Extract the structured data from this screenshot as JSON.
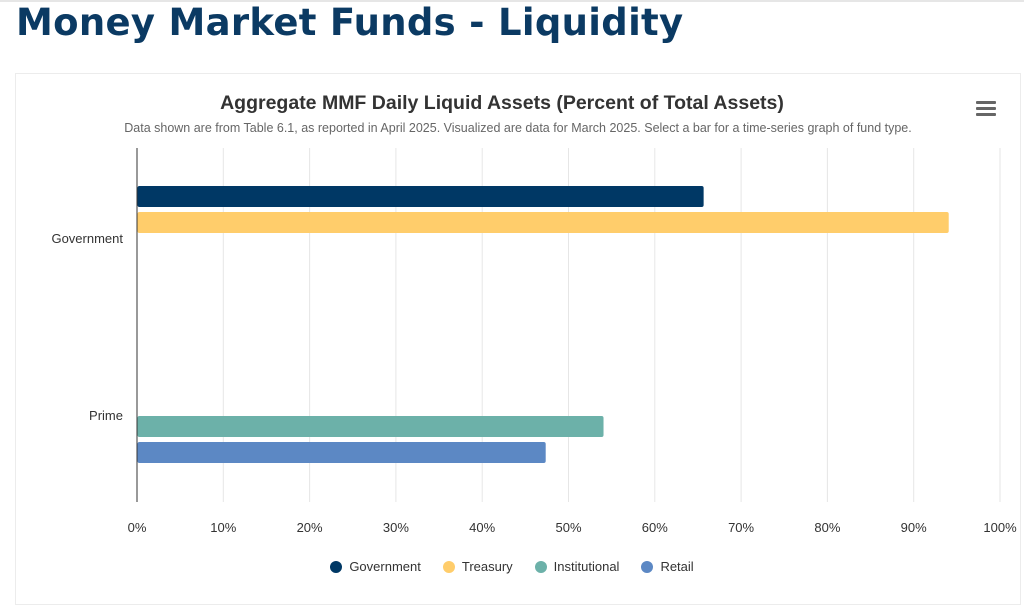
{
  "page": {
    "title": "Money Market Funds - Liquidity",
    "title_color": "#0b3a63"
  },
  "toolbar": {
    "menu_icon": "hamburger-menu-icon"
  },
  "chart_data": {
    "type": "bar",
    "orientation": "horizontal",
    "title": "Aggregate MMF Daily Liquid Assets (Percent of Total Assets)",
    "subtitle": "Data shown are from Table 6.1, as reported in April 2025. Visualized are data for March 2025. Select a bar for a time-series graph of fund type.",
    "categories": [
      "Government",
      "Prime"
    ],
    "series": [
      {
        "name": "Government",
        "color": "#003865",
        "category": "Government",
        "value": 65.6
      },
      {
        "name": "Treasury",
        "color": "#ffcd6b",
        "category": "Government",
        "value": 94.0
      },
      {
        "name": "Institutional",
        "color": "#6cb1a9",
        "category": "Prime",
        "value": 54.0
      },
      {
        "name": "Retail",
        "color": "#5c88c4",
        "category": "Prime",
        "value": 47.3
      }
    ],
    "xlim": [
      0,
      100
    ],
    "x_ticks": [
      "0%",
      "10%",
      "20%",
      "30%",
      "40%",
      "50%",
      "60%",
      "70%",
      "80%",
      "90%",
      "100%"
    ],
    "xlabel": "",
    "ylabel": "",
    "grid": true,
    "legend_position": "bottom-center"
  }
}
